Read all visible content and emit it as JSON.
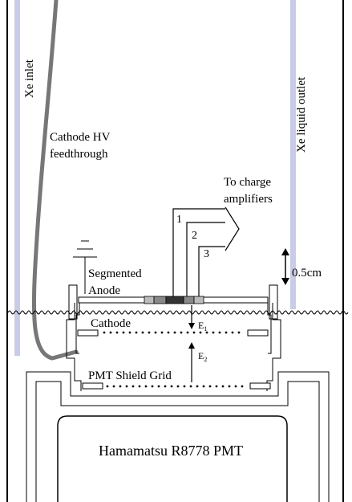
{
  "labels": {
    "xe_inlet": "Xe inlet",
    "xe_outlet": "Xe liquid outlet",
    "cathode_hv_line1": "Cathode HV",
    "cathode_hv_line2": "feedthrough",
    "charge_amp_line1": "To charge",
    "charge_amp_line2": "amplifiers",
    "channel_1": "1",
    "channel_2": "2",
    "channel_3": "3",
    "anode_line1": "Segmented",
    "anode_line2": "Anode",
    "gap": "0.5cm",
    "cathode": "Cathode",
    "e1": "E",
    "e1_sub": "1",
    "e2": "E",
    "e2_sub": "2",
    "shield_grid": "PMT Shield Grid",
    "pmt": "Hamamatsu R8778 PMT"
  },
  "colors": {
    "pipe": "#c8cce6",
    "cable": "#777777",
    "anode_seg_dark": "#333333",
    "anode_seg_mid": "#888888",
    "anode_seg_light": "#bbbbbb"
  }
}
